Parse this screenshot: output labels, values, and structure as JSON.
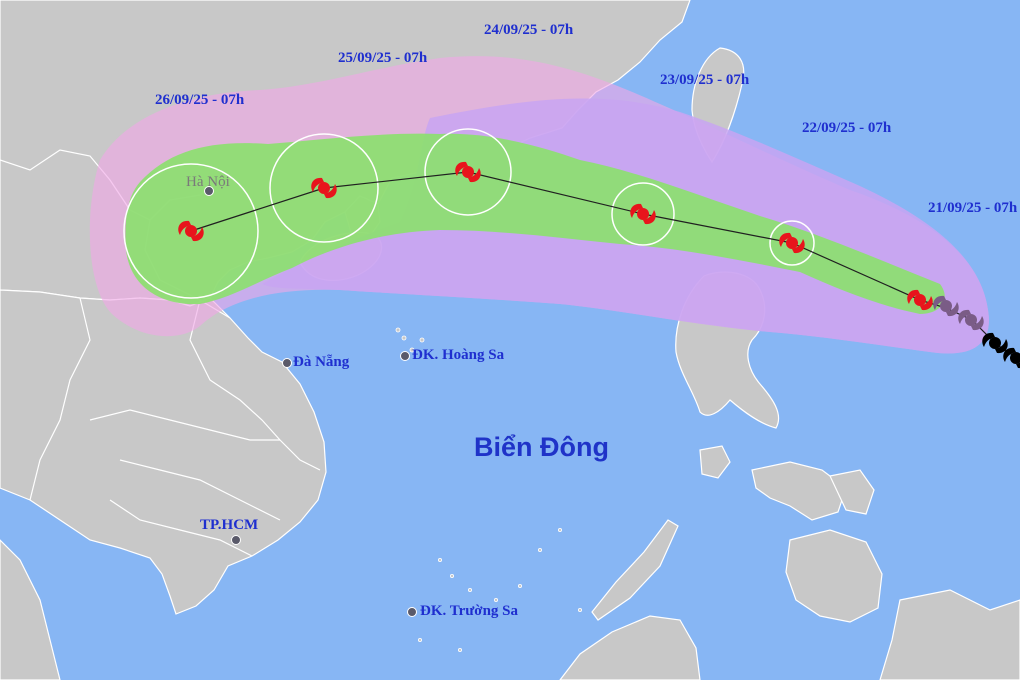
{
  "sea_label": "Biển Đông",
  "places": {
    "ha_noi": "Hà Nội",
    "da_nang": "Đà Nẵng",
    "hoang_sa": "ĐK. Hoàng Sa",
    "tphcm": "TP.HCM",
    "truong_sa": "ĐK. Trường Sa"
  },
  "forecast_times": {
    "d21": "21/09/25 - 07h",
    "d22": "22/09/25 - 07h",
    "d23": "23/09/25 - 07h",
    "d24": "24/09/25 - 07h",
    "d25": "25/09/25 - 07h",
    "d26": "26/09/25 - 07h"
  },
  "colors": {
    "sea": "#87b6f4",
    "land": "#c8c8c8",
    "coast_line": "#ffffff",
    "risk_zone": "#f0a8e6",
    "wind_zone": "#c8a4f2",
    "forecast_cone": "#8ce070",
    "storm_symbol_forecast": "#e8141c",
    "storm_symbol_past": "#7a5c86",
    "storm_symbol_earlier": "#000000",
    "label_text": "#1f2fcf"
  },
  "track_icons": [
    "storm-symbol-forecast",
    "storm-symbol-past",
    "storm-symbol-earlier"
  ]
}
